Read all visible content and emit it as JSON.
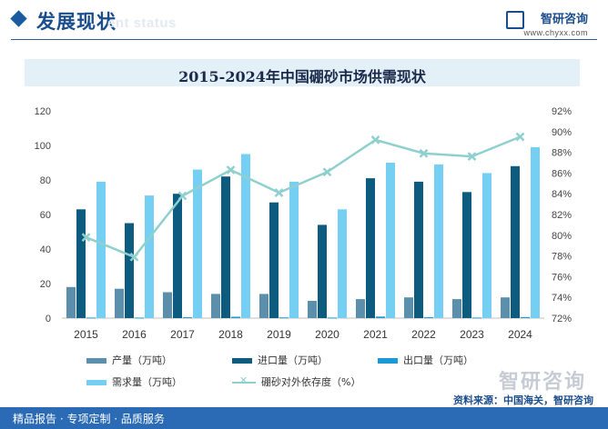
{
  "header": {
    "title": "发展现状",
    "subtitle": "ent status"
  },
  "brand": {
    "name": "智研咨询",
    "url": "www.chyxx.com"
  },
  "footer": {
    "slogan": "精品报告 · 专项定制 · 品质服务",
    "source": "资料来源：中国海关，智研咨询",
    "watermark": "智研咨询"
  },
  "colors": {
    "production": "#5b8fab",
    "import": "#0d5c80",
    "export": "#1a9ad6",
    "demand": "#74cff3",
    "dependency": "#8fd0cf",
    "accent": "#1a4d8c"
  },
  "chart_data": {
    "type": "bar",
    "title": "2015-2024年中国硼砂市场供需现状",
    "categories": [
      "2015",
      "2016",
      "2017",
      "2018",
      "2019",
      "2020",
      "2021",
      "2022",
      "2023",
      "2024"
    ],
    "series": [
      {
        "name": "产量（万吨）",
        "type": "bar",
        "axis": "left",
        "values": [
          18,
          17,
          15,
          14,
          14,
          10,
          11,
          12,
          11,
          12
        ]
      },
      {
        "name": "进口量（万吨）",
        "type": "bar",
        "axis": "left",
        "values": [
          63,
          55,
          72,
          82,
          67,
          54,
          81,
          79,
          73,
          88
        ]
      },
      {
        "name": "出口量（万吨）",
        "type": "bar",
        "axis": "left",
        "values": [
          0.3,
          0.3,
          0.5,
          0.8,
          0.4,
          0.3,
          0.9,
          0.5,
          0.3,
          0.6
        ]
      },
      {
        "name": "需求量（万吨）",
        "type": "bar",
        "axis": "left",
        "values": [
          79,
          71,
          86,
          95,
          79,
          63,
          90,
          89,
          84,
          99
        ]
      },
      {
        "name": "硼砂对外依存度（%）",
        "type": "line",
        "axis": "right",
        "values": [
          79.8,
          77.9,
          83.8,
          86.3,
          84.1,
          86.1,
          89.2,
          87.9,
          87.6,
          89.5
        ]
      }
    ],
    "y_left": {
      "min": 0,
      "max": 120,
      "ticks": [
        0,
        20,
        40,
        60,
        80,
        100,
        120
      ]
    },
    "y_right": {
      "min": 72,
      "max": 92,
      "ticks": [
        "72%",
        "74%",
        "76%",
        "78%",
        "80%",
        "82%",
        "84%",
        "86%",
        "88%",
        "90%",
        "92%"
      ]
    },
    "grid": false,
    "legend_position": "bottom"
  }
}
